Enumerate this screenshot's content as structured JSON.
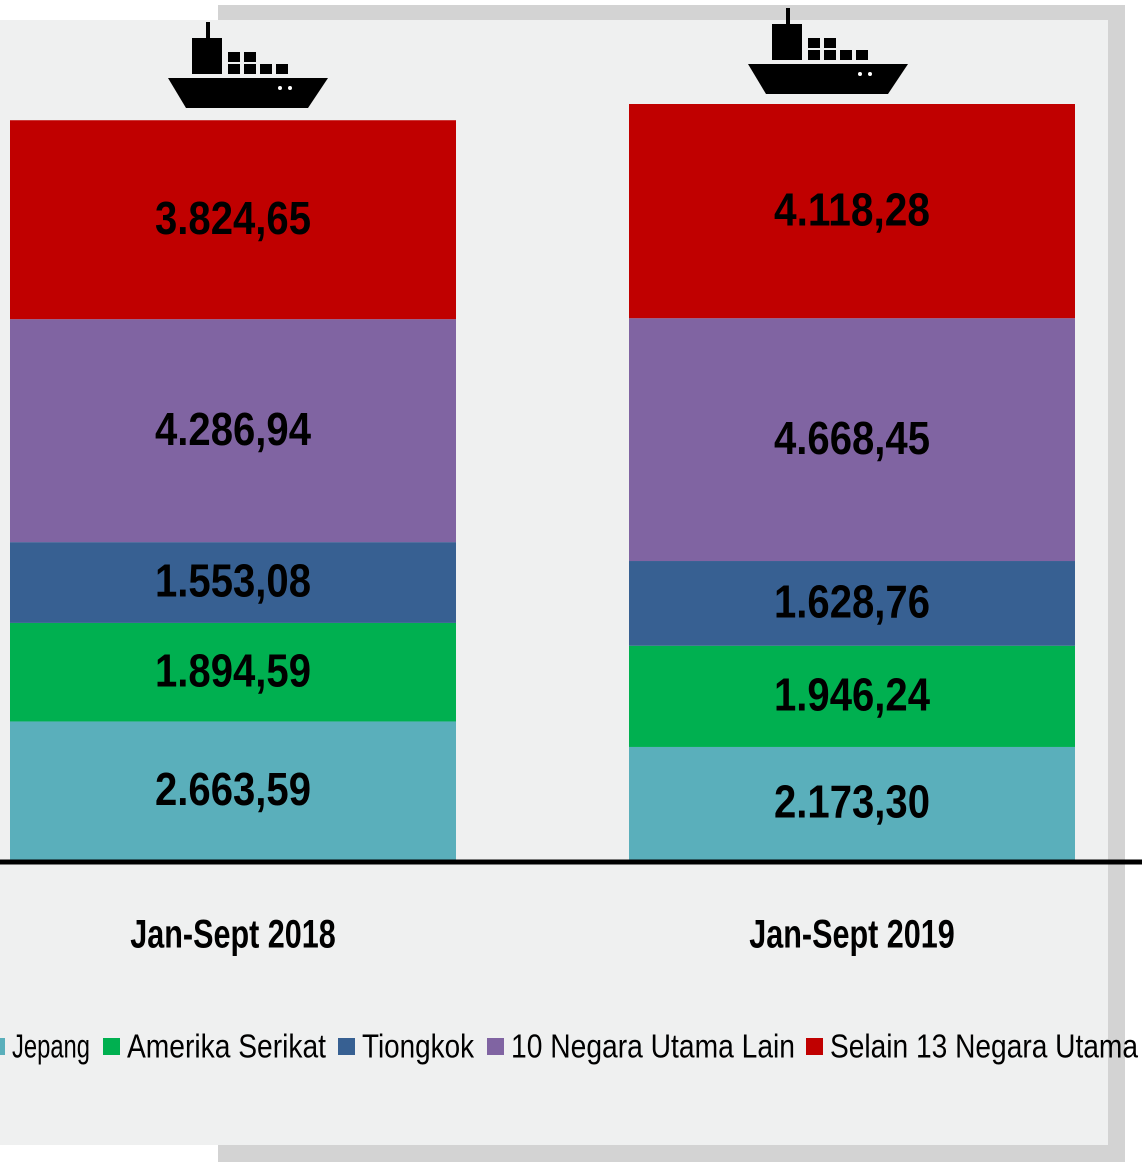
{
  "chart_data": {
    "type": "stacked_bar",
    "categories": [
      "Jan-Sept 2018",
      "Jan-Sept 2019"
    ],
    "series": [
      {
        "name": "Jepang",
        "color": "#5aafbb",
        "values": [
          2663.59,
          2173.3
        ],
        "value_labels": [
          "2.663,59",
          "2.173,30"
        ]
      },
      {
        "name": "Amerika Serikat",
        "color": "#00b050",
        "values": [
          1894.59,
          1946.24
        ],
        "value_labels": [
          "1.894,59",
          "1.946,24"
        ]
      },
      {
        "name": "Tiongkok",
        "color": "#376092",
        "values": [
          1553.08,
          1628.76
        ],
        "value_labels": [
          "1.553,08",
          "1.628,76"
        ]
      },
      {
        "name": "10 Negara Utama Lain",
        "color": "#8064a2",
        "values": [
          4286.94,
          4668.45
        ],
        "value_labels": [
          "4.286,94",
          "4.668,45"
        ]
      },
      {
        "name": "Selain 13 Negara Utama",
        "color": "#c00000",
        "values": [
          3824.65,
          4118.28
        ],
        "value_labels": [
          "3.824,65",
          "4.118,28"
        ]
      }
    ],
    "legend": "bottom"
  }
}
